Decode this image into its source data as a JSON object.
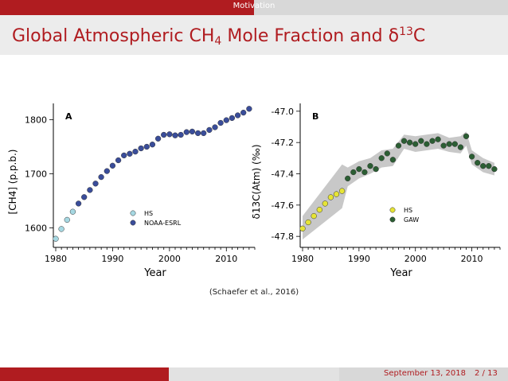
{
  "header": {
    "section": "Motivation"
  },
  "slide": {
    "title_main": "Global Atmospheric CH",
    "title_sub": "4",
    "title_mid": " Mole Fraction and δ",
    "title_sup": "13",
    "title_end": "C"
  },
  "citation": "(Schaefer et al., 2016)",
  "footer": {
    "date": "September 13, 2018",
    "page": "2 / 13"
  },
  "chart_data": [
    {
      "type": "scatter",
      "panel_label": "A",
      "xlabel": "Year",
      "ylabel": "[CH4] (p.p.b.)",
      "xlim": [
        1980,
        2015
      ],
      "ylim": [
        1570,
        1830
      ],
      "xticks": [
        1980,
        1990,
        2000,
        2010
      ],
      "yticks": [
        1600,
        1700,
        1800
      ],
      "legend_position": "lower-right",
      "series": [
        {
          "name": "HS",
          "color": "#a6d8e2",
          "x": [
            1980,
            1981,
            1982,
            1983
          ],
          "y": [
            1580,
            1598,
            1615,
            1630
          ]
        },
        {
          "name": "NOAA-ESRL",
          "color": "#3a4d9a",
          "x": [
            1984,
            1985,
            1986,
            1987,
            1988,
            1989,
            1990,
            1991,
            1992,
            1993,
            1994,
            1995,
            1996,
            1997,
            1998,
            1999,
            2000,
            2001,
            2002,
            2003,
            2004,
            2005,
            2006,
            2007,
            2008,
            2009,
            2010,
            2011,
            2012,
            2013,
            2014
          ],
          "y": [
            1645,
            1657,
            1670,
            1682,
            1694,
            1705,
            1715,
            1725,
            1734,
            1737,
            1741,
            1747,
            1750,
            1754,
            1765,
            1772,
            1773,
            1771,
            1772,
            1777,
            1778,
            1775,
            1775,
            1781,
            1786,
            1794,
            1799,
            1803,
            1808,
            1813,
            1820
          ]
        }
      ]
    },
    {
      "type": "scatter",
      "panel_label": "B",
      "xlabel": "Year",
      "ylabel": "δ13C(Atm) (‰)",
      "xlim": [
        1980,
        2015
      ],
      "ylim": [
        -47.85,
        -46.95
      ],
      "xticks": [
        1980,
        1990,
        2000,
        2010
      ],
      "yticks": [
        -47.0,
        -47.2,
        -47.4,
        -47.6,
        -47.8
      ],
      "legend_position": "lower-right",
      "series": [
        {
          "name": "HS",
          "color": "#e6e436",
          "x": [
            1980,
            1981,
            1982,
            1983,
            1984,
            1985,
            1986,
            1987
          ],
          "y": [
            -47.75,
            -47.71,
            -47.67,
            -47.63,
            -47.59,
            -47.55,
            -47.53,
            -47.51
          ]
        },
        {
          "name": "GAW",
          "color": "#2b5e33",
          "x": [
            1988,
            1989,
            1990,
            1991,
            1992,
            1993,
            1994,
            1995,
            1996,
            1997,
            1998,
            1999,
            2000,
            2001,
            2002,
            2003,
            2004,
            2005,
            2006,
            2007,
            2008,
            2009,
            2010,
            2011,
            2012,
            2013,
            2014
          ],
          "y": [
            -47.43,
            -47.39,
            -47.37,
            -47.39,
            -47.35,
            -47.37,
            -47.3,
            -47.27,
            -47.31,
            -47.22,
            -47.19,
            -47.2,
            -47.21,
            -47.19,
            -47.21,
            -47.19,
            -47.18,
            -47.22,
            -47.21,
            -47.21,
            -47.23,
            -47.16,
            -47.29,
            -47.33,
            -47.35,
            -47.35,
            -47.37
          ]
        }
      ],
      "uncertainty_band": {
        "color": "#c8c8c8",
        "x": [
          1980,
          1987,
          1988,
          1990,
          1992,
          1994,
          1996,
          1998,
          2000,
          2002,
          2004,
          2006,
          2008,
          2009,
          2010,
          2012,
          2014
        ],
        "upper": [
          -47.67,
          -47.34,
          -47.36,
          -47.32,
          -47.3,
          -47.25,
          -47.24,
          -47.15,
          -47.16,
          -47.15,
          -47.14,
          -47.17,
          -47.16,
          -47.13,
          -47.25,
          -47.3,
          -47.33
        ],
        "lower": [
          -47.82,
          -47.62,
          -47.48,
          -47.43,
          -47.4,
          -47.36,
          -47.35,
          -47.24,
          -47.26,
          -47.25,
          -47.24,
          -47.26,
          -47.27,
          -47.22,
          -47.34,
          -47.39,
          -47.41
        ]
      }
    }
  ]
}
